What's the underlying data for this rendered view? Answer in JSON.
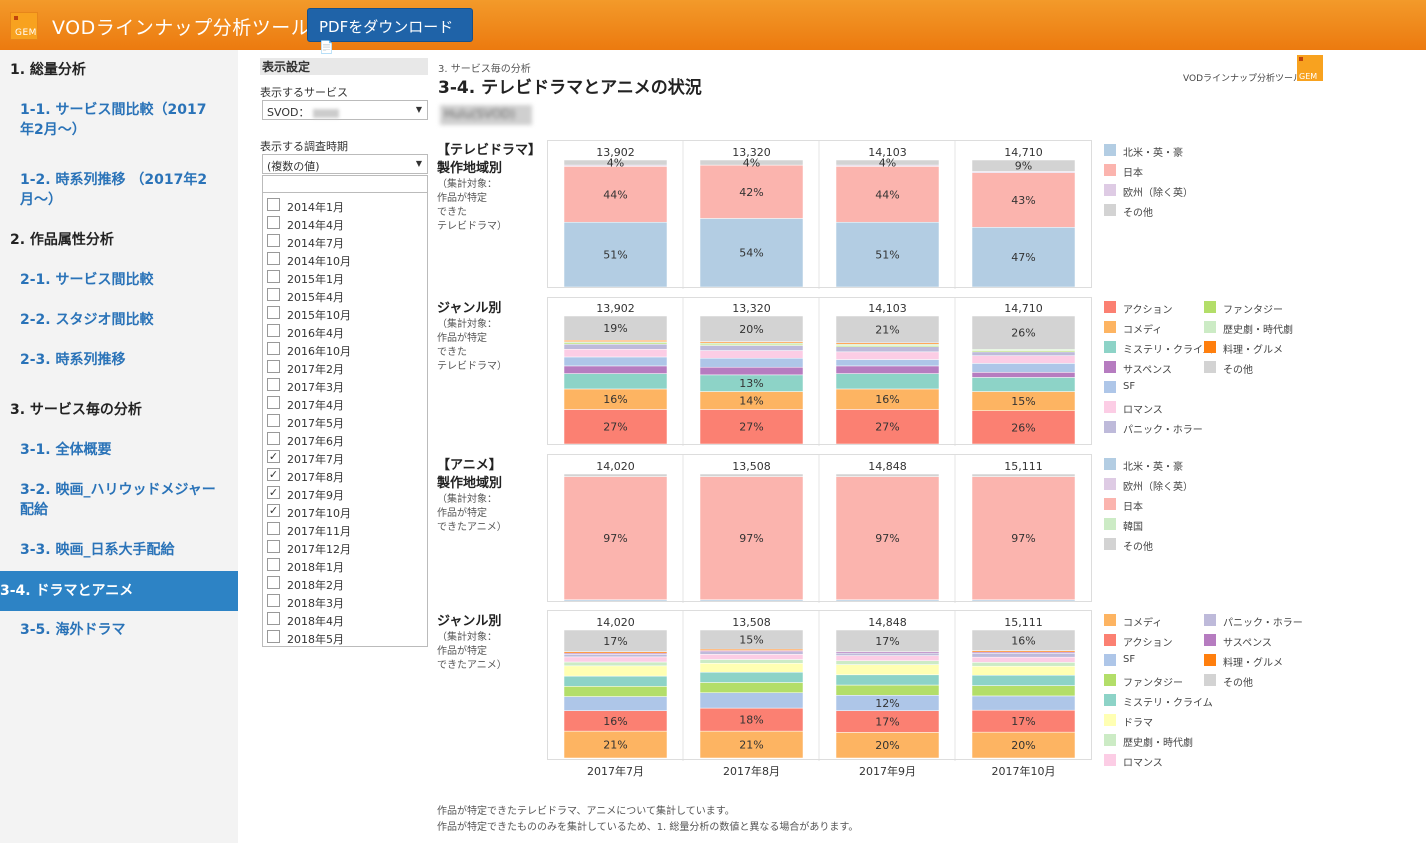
{
  "header": {
    "logo_text": "GEM",
    "title": "VODラインナップ分析ツール",
    "pdf_button": "PDFをダウンロード"
  },
  "sidebar": {
    "items": [
      {
        "label": "1. 総量分析",
        "kind": "section"
      },
      {
        "label": "1-1. サービス間比較（2017年2月～）",
        "kind": "link"
      },
      {
        "label": "1-2. 時系列推移 （2017年2月～）",
        "kind": "link"
      },
      {
        "label": "2. 作品属性分析",
        "kind": "section"
      },
      {
        "label": "2-1. サービス間比較",
        "kind": "link"
      },
      {
        "label": "2-2. スタジオ間比較",
        "kind": "link"
      },
      {
        "label": "2-3. 時系列推移",
        "kind": "link"
      },
      {
        "label": "3. サービス毎の分析",
        "kind": "section"
      },
      {
        "label": "3-1. 全体概要",
        "kind": "link"
      },
      {
        "label": "3-2. 映画_ハリウッドメジャー配給",
        "kind": "link"
      },
      {
        "label": "3-3. 映画_日系大手配給",
        "kind": "link"
      },
      {
        "label": "3-4. ドラマとアニメ",
        "kind": "active"
      },
      {
        "label": "3-5. 海外ドラマ",
        "kind": "link"
      }
    ]
  },
  "settings": {
    "title": "表示設定",
    "service_label": "表示するサービス",
    "service_value": "SVOD：",
    "period_label": "表示する調査時期",
    "period_value": "(複数の値)",
    "periods": [
      {
        "label": "2014年1月",
        "checked": false
      },
      {
        "label": "2014年4月",
        "checked": false
      },
      {
        "label": "2014年7月",
        "checked": false
      },
      {
        "label": "2014年10月",
        "checked": false
      },
      {
        "label": "2015年1月",
        "checked": false
      },
      {
        "label": "2015年4月",
        "checked": false
      },
      {
        "label": "2015年10月",
        "checked": false
      },
      {
        "label": "2016年4月",
        "checked": false
      },
      {
        "label": "2016年10月",
        "checked": false
      },
      {
        "label": "2017年2月",
        "checked": false
      },
      {
        "label": "2017年3月",
        "checked": false
      },
      {
        "label": "2017年4月",
        "checked": false
      },
      {
        "label": "2017年5月",
        "checked": false
      },
      {
        "label": "2017年6月",
        "checked": false
      },
      {
        "label": "2017年7月",
        "checked": true
      },
      {
        "label": "2017年8月",
        "checked": true
      },
      {
        "label": "2017年9月",
        "checked": true
      },
      {
        "label": "2017年10月",
        "checked": true
      },
      {
        "label": "2017年11月",
        "checked": false
      },
      {
        "label": "2017年12月",
        "checked": false
      },
      {
        "label": "2018年1月",
        "checked": false
      },
      {
        "label": "2018年2月",
        "checked": false
      },
      {
        "label": "2018年3月",
        "checked": false
      },
      {
        "label": "2018年4月",
        "checked": false
      },
      {
        "label": "2018年5月",
        "checked": false
      }
    ]
  },
  "page": {
    "crumb": "3. サービス毎の分析",
    "title": "3-4. テレビドラマとアニメの状況",
    "service_name": "Hulu(SVOD)",
    "brand": "VODラインナップ分析ツール",
    "brand_logo": "GEM",
    "notes": [
      "作品が特定できたテレビドラマ、アニメについて集計しています。",
      "作品が特定できたもののみを集計しているため、1. 総量分析の数値と異なる場合があります。"
    ]
  },
  "row_labels": [
    {
      "main": [
        "【テレビドラマ】",
        "製作地域別"
      ],
      "sub": [
        "（集計対象：",
        "作品が特定",
        "できた",
        "テレビドラマ）"
      ]
    },
    {
      "main": [
        "ジャンル別"
      ],
      "sub": [
        "（集計対象：",
        "作品が特定",
        "できた",
        "テレビドラマ）"
      ]
    },
    {
      "main": [
        "【アニメ】",
        "製作地域別"
      ],
      "sub": [
        "（集計対象：",
        "作品が特定",
        "できたアニメ）"
      ]
    },
    {
      "main": [
        "ジャンル別"
      ],
      "sub": [
        "（集計対象：",
        "作品が特定",
        "できたアニメ）"
      ]
    }
  ],
  "legends": [
    [
      {
        "label": "北米・英・豪",
        "color": "#b3cde3"
      },
      {
        "label": "日本",
        "color": "#fbb4ae"
      },
      {
        "label": "欧州（除く英）",
        "color": "#decbe4"
      },
      {
        "label": "その他",
        "color": "#d3d3d3"
      }
    ],
    [
      {
        "label": "アクション",
        "color": "#fb8072"
      },
      {
        "label": "コメディ",
        "color": "#fdb462"
      },
      {
        "label": "ミステリ・クライム",
        "color": "#8dd3c7"
      },
      {
        "label": "サスペンス",
        "color": "#b67cc0"
      },
      {
        "label": "SF",
        "color": "#aec6e8"
      },
      {
        "label": "ロマンス",
        "color": "#fccde5"
      },
      {
        "label": "パニック・ホラー",
        "color": "#bebada"
      },
      {
        "label": "ファンタジー",
        "color": "#b3de69"
      },
      {
        "label": "歴史劇・時代劇",
        "color": "#ccebc5"
      },
      {
        "label": "料理・グルメ",
        "color": "#ff7f0e"
      },
      {
        "label": "その他",
        "color": "#d3d3d3"
      }
    ],
    [
      {
        "label": "北米・英・豪",
        "color": "#b3cde3"
      },
      {
        "label": "欧州（除く英）",
        "color": "#decbe4"
      },
      {
        "label": "日本",
        "color": "#fbb4ae"
      },
      {
        "label": "韓国",
        "color": "#ccebc5"
      },
      {
        "label": "その他",
        "color": "#d3d3d3"
      }
    ],
    [
      {
        "label": "コメディ",
        "color": "#fdb462"
      },
      {
        "label": "アクション",
        "color": "#fb8072"
      },
      {
        "label": "SF",
        "color": "#aec6e8"
      },
      {
        "label": "ファンタジー",
        "color": "#b3de69"
      },
      {
        "label": "ミステリ・クライム",
        "color": "#8dd3c7"
      },
      {
        "label": "ドラマ",
        "color": "#ffffb3"
      },
      {
        "label": "歴史劇・時代劇",
        "color": "#ccebc5"
      },
      {
        "label": "ロマンス",
        "color": "#fccde5"
      },
      {
        "label": "パニック・ホラー",
        "color": "#bebada"
      },
      {
        "label": "サスペンス",
        "color": "#b67cc0"
      },
      {
        "label": "料理・グルメ",
        "color": "#ff7f0e"
      },
      {
        "label": "その他",
        "color": "#d3d3d3"
      }
    ]
  ],
  "chart_data": [
    {
      "type": "bar",
      "stacked": "percent",
      "categories": [
        "2017年7月",
        "2017年8月",
        "2017年9月",
        "2017年10月"
      ],
      "totals": [
        "13,902",
        "13,320",
        "14,103",
        "14,710"
      ],
      "series": [
        {
          "name": "北米・英・豪",
          "color": "#b3cde3",
          "values": [
            51,
            54,
            51,
            47
          ],
          "labels": [
            "51%",
            "54%",
            "51%",
            "47%"
          ]
        },
        {
          "name": "日本",
          "color": "#fbb4ae",
          "values": [
            44,
            42,
            44,
            43
          ],
          "labels": [
            "44%",
            "42%",
            "44%",
            "43%"
          ]
        },
        {
          "name": "欧州（除く英）",
          "color": "#decbe4",
          "values": [
            1,
            0,
            1,
            1
          ],
          "labels": [
            "",
            "",
            "",
            ""
          ]
        },
        {
          "name": "その他",
          "color": "#d3d3d3",
          "values": [
            4,
            4,
            4,
            9
          ],
          "labels": [
            "4%",
            "4%",
            "4%",
            "9%"
          ]
        }
      ]
    },
    {
      "type": "bar",
      "stacked": "percent",
      "categories": [
        "2017年7月",
        "2017年8月",
        "2017年9月",
        "2017年10月"
      ],
      "totals": [
        "13,902",
        "13,320",
        "14,103",
        "14,710"
      ],
      "series": [
        {
          "name": "アクション",
          "color": "#fb8072",
          "values": [
            27,
            27,
            27,
            26
          ],
          "labels": [
            "27%",
            "27%",
            "27%",
            "26%"
          ]
        },
        {
          "name": "コメディ",
          "color": "#fdb462",
          "values": [
            16,
            14,
            16,
            15
          ],
          "labels": [
            "16%",
            "14%",
            "16%",
            "15%"
          ]
        },
        {
          "name": "ミステリ・クライム",
          "color": "#8dd3c7",
          "values": [
            12,
            13,
            12,
            11
          ],
          "labels": [
            "",
            "13%",
            "",
            ""
          ]
        },
        {
          "name": "サスペンス",
          "color": "#b67cc0",
          "values": [
            6,
            6,
            6,
            4
          ],
          "labels": [
            "",
            "",
            "",
            ""
          ]
        },
        {
          "name": "SF",
          "color": "#aec6e8",
          "values": [
            7,
            7,
            5,
            7
          ],
          "labels": [
            "",
            "",
            "",
            ""
          ]
        },
        {
          "name": "ロマンス",
          "color": "#fccde5",
          "values": [
            6,
            6,
            6,
            6
          ],
          "labels": [
            "",
            "",
            "",
            ""
          ]
        },
        {
          "name": "パニック・ホラー",
          "color": "#bebada",
          "values": [
            4,
            4,
            4,
            3
          ],
          "labels": [
            "",
            "",
            "",
            ""
          ]
        },
        {
          "name": "ファンタジー",
          "color": "#b3de69",
          "values": [
            1,
            1,
            1,
            1
          ],
          "labels": [
            "",
            "",
            "",
            ""
          ]
        },
        {
          "name": "歴史劇・時代劇",
          "color": "#ccebc5",
          "values": [
            1,
            1,
            1,
            1
          ],
          "labels": [
            "",
            "",
            "",
            ""
          ]
        },
        {
          "name": "料理・グルメ",
          "color": "#ff7f0e",
          "values": [
            1,
            1,
            1,
            0
          ],
          "labels": [
            "",
            "",
            "",
            ""
          ]
        },
        {
          "name": "その他",
          "color": "#d3d3d3",
          "values": [
            19,
            20,
            21,
            26
          ],
          "labels": [
            "19%",
            "20%",
            "21%",
            "26%"
          ]
        }
      ]
    },
    {
      "type": "bar",
      "stacked": "percent",
      "categories": [
        "2017年7月",
        "2017年8月",
        "2017年9月",
        "2017年10月"
      ],
      "totals": [
        "14,020",
        "13,508",
        "14,848",
        "15,111"
      ],
      "series": [
        {
          "name": "北米・英・豪",
          "color": "#b3cde3",
          "values": [
            1,
            1,
            1,
            1
          ],
          "labels": [
            "",
            "",
            "",
            ""
          ]
        },
        {
          "name": "欧州（除く英）",
          "color": "#decbe4",
          "values": [
            0,
            0,
            0,
            0
          ],
          "labels": [
            "",
            "",
            "",
            ""
          ]
        },
        {
          "name": "日本",
          "color": "#fbb4ae",
          "values": [
            97,
            97,
            97,
            97
          ],
          "labels": [
            "97%",
            "97%",
            "97%",
            "97%"
          ]
        },
        {
          "name": "韓国",
          "color": "#ccebc5",
          "values": [
            0,
            0,
            0,
            0
          ],
          "labels": [
            "",
            "",
            "",
            ""
          ]
        },
        {
          "name": "その他",
          "color": "#d3d3d3",
          "values": [
            2,
            2,
            2,
            2
          ],
          "labels": [
            "",
            "",
            "",
            ""
          ]
        }
      ]
    },
    {
      "type": "bar",
      "stacked": "percent",
      "categories": [
        "2017年7月",
        "2017年8月",
        "2017年9月",
        "2017年10月"
      ],
      "totals": [
        "14,020",
        "13,508",
        "14,848",
        "15,111"
      ],
      "series": [
        {
          "name": "コメディ",
          "color": "#fdb462",
          "values": [
            21,
            21,
            20,
            20
          ],
          "labels": [
            "21%",
            "21%",
            "20%",
            "20%"
          ]
        },
        {
          "name": "アクション",
          "color": "#fb8072",
          "values": [
            16,
            18,
            17,
            17
          ],
          "labels": [
            "16%",
            "18%",
            "17%",
            "17%"
          ]
        },
        {
          "name": "SF",
          "color": "#aec6e8",
          "values": [
            11,
            12,
            12,
            11
          ],
          "labels": [
            "",
            "",
            "12%",
            ""
          ]
        },
        {
          "name": "ファンタジー",
          "color": "#b3de69",
          "values": [
            8,
            8,
            8,
            8
          ],
          "labels": [
            "",
            "",
            "",
            ""
          ]
        },
        {
          "name": "ミステリ・クライム",
          "color": "#8dd3c7",
          "values": [
            8,
            8,
            8,
            8
          ],
          "labels": [
            "",
            "",
            "",
            ""
          ]
        },
        {
          "name": "ドラマ",
          "color": "#ffffb3",
          "values": [
            8,
            7,
            8,
            7
          ],
          "labels": [
            "",
            "",
            "",
            ""
          ]
        },
        {
          "name": "歴史劇・時代劇",
          "color": "#ccebc5",
          "values": [
            3,
            3,
            3,
            3
          ],
          "labels": [
            "",
            "",
            "",
            ""
          ]
        },
        {
          "name": "ロマンス",
          "color": "#fccde5",
          "values": [
            4,
            4,
            4,
            4
          ],
          "labels": [
            "",
            "",
            "",
            ""
          ]
        },
        {
          "name": "パニック・ホラー",
          "color": "#bebada",
          "values": [
            2,
            2,
            2,
            3
          ],
          "labels": [
            "",
            "",
            "",
            ""
          ]
        },
        {
          "name": "サスペンス",
          "color": "#b67cc0",
          "values": [
            1,
            1,
            1,
            1
          ],
          "labels": [
            "",
            "",
            "",
            ""
          ]
        },
        {
          "name": "料理・グルメ",
          "color": "#ff7f0e",
          "values": [
            1,
            1,
            0,
            1
          ],
          "labels": [
            "",
            "",
            "",
            ""
          ]
        },
        {
          "name": "その他",
          "color": "#d3d3d3",
          "values": [
            17,
            15,
            17,
            16
          ],
          "labels": [
            "17%",
            "15%",
            "17%",
            "16%"
          ]
        }
      ]
    }
  ]
}
